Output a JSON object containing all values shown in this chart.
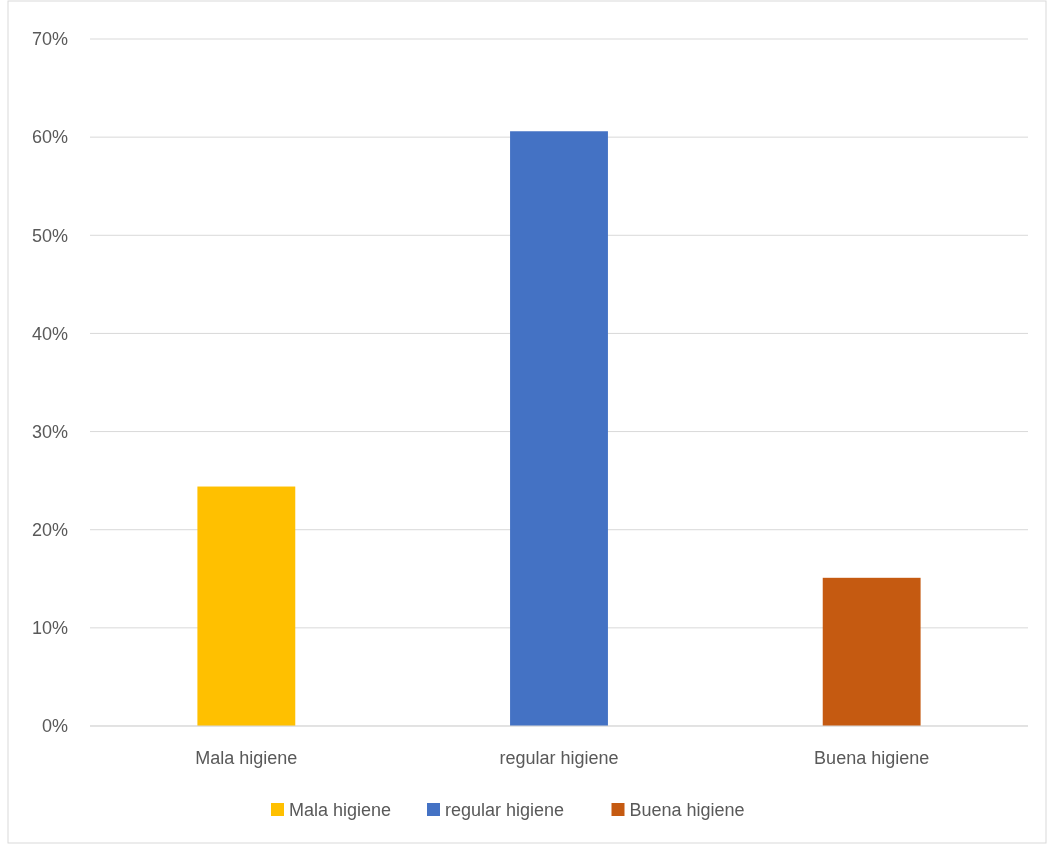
{
  "chart_data": {
    "type": "bar",
    "categories": [
      "Mala higiene",
      "regular higiene",
      "Buena higiene"
    ],
    "series": [
      {
        "name": "Mala higiene",
        "color": "#ffc000",
        "values": [
          24.4,
          null,
          null
        ]
      },
      {
        "name": "regular higiene",
        "color": "#4472c4",
        "values": [
          null,
          60.6,
          null
        ]
      },
      {
        "name": "Buena higiene",
        "color": "#c55a11",
        "values": [
          null,
          null,
          15.1
        ]
      }
    ],
    "stacked": true,
    "ylim": [
      0,
      70
    ],
    "yticks": [
      {
        "value": 0,
        "label": "0%"
      },
      {
        "value": 10,
        "label": "10%"
      },
      {
        "value": 20,
        "label": "20%"
      },
      {
        "value": 30,
        "label": "30%"
      },
      {
        "value": 40,
        "label": "40%"
      },
      {
        "value": 50,
        "label": "50%"
      },
      {
        "value": 60,
        "label": "60%"
      },
      {
        "value": 70,
        "label": "70%"
      }
    ],
    "grid": "y",
    "legend": "bottom"
  }
}
